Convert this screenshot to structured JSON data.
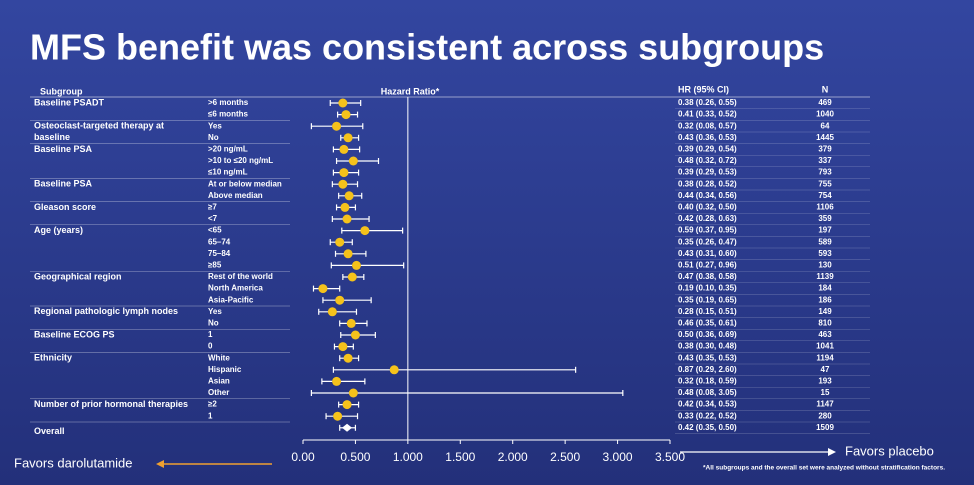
{
  "chart_data": {
    "type": "forest",
    "title": "MFS benefit was consistent across subgroups",
    "headers": {
      "subgroup": "Subgroup",
      "plot": "Hazard Ratio*",
      "ci": "HR (95% CI)",
      "n": "N"
    },
    "xlim": [
      0,
      3.5
    ],
    "xticks": [
      {
        "value": 0,
        "label": "0.00"
      },
      {
        "value": 0.5,
        "label": "0.500"
      },
      {
        "value": 1,
        "label": "1.000"
      },
      {
        "value": 1.5,
        "label": "1.500"
      },
      {
        "value": 2,
        "label": "2.000"
      },
      {
        "value": 2.5,
        "label": "2.500"
      },
      {
        "value": 3,
        "label": "3.000"
      },
      {
        "value": 3.5,
        "label": "3.500"
      }
    ],
    "reference_line": 1,
    "point_color": "#f5c21b",
    "left_label": "Favors darolutamide",
    "right_label": "Favors placebo",
    "footnote": "*All subgroups and the overall set were analyzed without stratification factors.",
    "rows": [
      {
        "group": "Baseline PSADT",
        "subgroup": ">6 months",
        "value": 0.38,
        "ci": [
          0.26,
          0.55
        ],
        "value_label": "0.38 (0.26, 0.55)",
        "n": 469
      },
      {
        "subgroup": "≤6 months",
        "value": 0.41,
        "ci": [
          0.33,
          0.52
        ],
        "value_label": "0.41 (0.33, 0.52)",
        "n": 1040
      },
      {
        "group": [
          "Osteoclast-targeted therapy at",
          "baseline"
        ],
        "subgroup": "Yes",
        "value": 0.32,
        "ci": [
          0.08,
          0.57
        ],
        "value_label": "0.32 (0.08, 0.57)",
        "n": 64
      },
      {
        "subgroup": "No",
        "value": 0.43,
        "ci": [
          0.36,
          0.53
        ],
        "value_label": "0.43 (0.36, 0.53)",
        "n": 1445
      },
      {
        "group": "Baseline PSA",
        "subgroup": ">20 ng/mL",
        "value": 0.39,
        "ci": [
          0.29,
          0.54
        ],
        "value_label": "0.39 (0.29, 0.54)",
        "n": 379
      },
      {
        "subgroup": ">10 to ≤20 ng/mL",
        "value": 0.48,
        "ci": [
          0.32,
          0.72
        ],
        "value_label": "0.48 (0.32, 0.72)",
        "n": 337
      },
      {
        "subgroup": "≤10 ng/mL",
        "value": 0.39,
        "ci": [
          0.29,
          0.53
        ],
        "value_label": "0.39 (0.29, 0.53)",
        "n": 793
      },
      {
        "group": "Baseline PSA",
        "subgroup": "At or below median",
        "value": 0.38,
        "ci": [
          0.28,
          0.52
        ],
        "value_label": "0.38 (0.28, 0.52)",
        "n": 755
      },
      {
        "subgroup": "Above median",
        "value": 0.44,
        "ci": [
          0.34,
          0.56
        ],
        "value_label": "0.44 (0.34, 0.56)",
        "n": 754
      },
      {
        "group": "Gleason score",
        "subgroup": "≥7",
        "value": 0.4,
        "ci": [
          0.32,
          0.5
        ],
        "value_label": "0.40 (0.32, 0.50)",
        "n": 1106
      },
      {
        "subgroup": "<7",
        "value": 0.42,
        "ci": [
          0.28,
          0.63
        ],
        "value_label": "0.42 (0.28, 0.63)",
        "n": 359
      },
      {
        "group": "Age (years)",
        "subgroup": "<65",
        "value": 0.59,
        "ci": [
          0.37,
          0.95
        ],
        "value_label": "0.59 (0.37, 0.95)",
        "n": 197
      },
      {
        "subgroup": "65–74",
        "value": 0.35,
        "ci": [
          0.26,
          0.47
        ],
        "value_label": "0.35 (0.26, 0.47)",
        "n": 589
      },
      {
        "subgroup": "75–84",
        "value": 0.43,
        "ci": [
          0.31,
          0.6
        ],
        "value_label": "0.43 (0.31, 0.60)",
        "n": 593
      },
      {
        "subgroup": "≥85",
        "value": 0.51,
        "ci": [
          0.27,
          0.96
        ],
        "value_label": "0.51 (0.27, 0.96)",
        "n": 130
      },
      {
        "group": "Geographical region",
        "subgroup": "Rest of the world",
        "value": 0.47,
        "ci": [
          0.38,
          0.58
        ],
        "value_label": "0.47 (0.38, 0.58)",
        "n": 1139
      },
      {
        "subgroup": "North America",
        "value": 0.19,
        "ci": [
          0.1,
          0.35
        ],
        "value_label": "0.19 (0.10, 0.35)",
        "n": 184
      },
      {
        "subgroup": "Asia-Pacific",
        "value": 0.35,
        "ci": [
          0.19,
          0.65
        ],
        "value_label": "0.35 (0.19, 0.65)",
        "n": 186
      },
      {
        "group": "Regional pathologic lymph nodes",
        "subgroup": "Yes",
        "value": 0.28,
        "ci": [
          0.15,
          0.51
        ],
        "value_label": "0.28 (0.15, 0.51)",
        "n": 149
      },
      {
        "subgroup": "No",
        "value": 0.46,
        "ci": [
          0.35,
          0.61
        ],
        "value_label": "0.46 (0.35, 0.61)",
        "n": 810
      },
      {
        "group": "Baseline ECOG PS",
        "subgroup": "1",
        "value": 0.5,
        "ci": [
          0.36,
          0.69
        ],
        "value_label": "0.50 (0.36, 0.69)",
        "n": 463
      },
      {
        "subgroup": "0",
        "value": 0.38,
        "ci": [
          0.3,
          0.48
        ],
        "value_label": "0.38 (0.30, 0.48)",
        "n": 1041
      },
      {
        "group": "Ethnicity",
        "subgroup": "White",
        "value": 0.43,
        "ci": [
          0.35,
          0.53
        ],
        "value_label": "0.43 (0.35, 0.53)",
        "n": 1194
      },
      {
        "subgroup": "Hispanic",
        "value": 0.87,
        "ci": [
          0.29,
          2.6
        ],
        "value_label": "0.87 (0.29, 2.60)",
        "n": 47
      },
      {
        "subgroup": "Asian",
        "value": 0.32,
        "ci": [
          0.18,
          0.59
        ],
        "value_label": "0.32 (0.18, 0.59)",
        "n": 193
      },
      {
        "subgroup": "Other",
        "value": 0.48,
        "ci": [
          0.08,
          3.05
        ],
        "value_label": "0.48 (0.08, 3.05)",
        "n": 15
      },
      {
        "group": "Number of prior hormonal therapies",
        "subgroup": "≥2",
        "value": 0.42,
        "ci": [
          0.34,
          0.53
        ],
        "value_label": "0.42 (0.34, 0.53)",
        "n": 1147
      },
      {
        "subgroup": "1",
        "value": 0.33,
        "ci": [
          0.22,
          0.52
        ],
        "value_label": "0.33 (0.22, 0.52)",
        "n": 280
      },
      {
        "group": "Overall",
        "overall": true,
        "value": 0.42,
        "ci": [
          0.35,
          0.5
        ],
        "value_label": "0.42 (0.35, 0.50)",
        "n": 1509
      }
    ]
  }
}
